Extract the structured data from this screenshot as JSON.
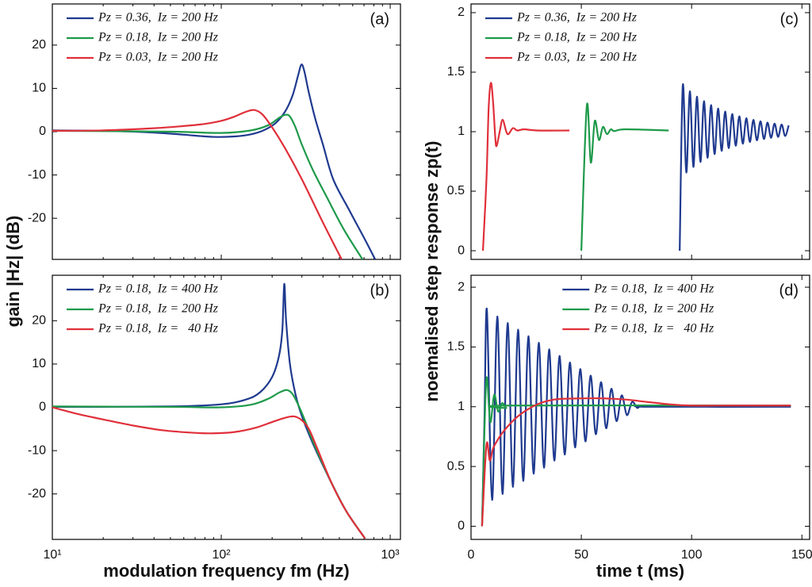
{
  "chart_data": [
    {
      "type": "line",
      "label": "(a)",
      "xscale": "log",
      "xlim": [
        10,
        1150
      ],
      "ylim": [
        -29.5,
        29.5
      ],
      "yticks": [
        20,
        10,
        0,
        -10,
        -20
      ],
      "legend": "upper left",
      "ylabel": "gain |Hz| (dB)",
      "series": [
        {
          "name": "Pz = 0.36,  Iz = 200 Hz",
          "color": "#1f3a8f",
          "x": [
            10,
            20,
            40,
            60,
            90,
            120,
            150,
            180,
            210,
            240,
            265,
            285,
            298,
            310,
            330,
            360,
            400,
            460,
            570,
            700,
            815
          ],
          "values": [
            0.3,
            0.2,
            -0.2,
            -0.7,
            -1.2,
            -1.1,
            -0.6,
            0.4,
            2.0,
            4.8,
            8.5,
            13,
            15.5,
            14,
            9,
            3,
            -3,
            -11,
            -18,
            -24.5,
            -29.5
          ]
        },
        {
          "name": "Pz = 0.18,  Iz = 200 Hz",
          "color": "#1e9a4a",
          "x": [
            10,
            50,
            100,
            150,
            190,
            220,
            240,
            255,
            275,
            300,
            350,
            420,
            530,
            686
          ],
          "values": [
            0.2,
            0.0,
            -0.3,
            0.3,
            1.5,
            3.2,
            3.9,
            3.5,
            1.0,
            -3,
            -9,
            -15,
            -22.5,
            -29.5
          ]
        },
        {
          "name": "Pz = 0.03,  Iz = 200 Hz",
          "color": "#e0303a",
          "x": [
            10,
            20,
            40,
            60,
            80,
            100,
            120,
            140,
            157,
            175,
            200,
            240,
            300,
            400,
            516
          ],
          "values": [
            0.2,
            0.3,
            0.8,
            1.3,
            1.8,
            2.5,
            3.5,
            4.6,
            5.0,
            4.0,
            1.0,
            -4,
            -11,
            -21,
            -29.5
          ]
        }
      ]
    },
    {
      "type": "line",
      "label": "(b)",
      "xscale": "log",
      "xlim": [
        10,
        1150
      ],
      "ylim": [
        -30.5,
        30.5
      ],
      "yticks": [
        20,
        10,
        0,
        -10,
        -20
      ],
      "legend": "upper left",
      "xticks": [
        {
          "value": 10,
          "label": "10¹"
        },
        {
          "value": 100,
          "label": "10²"
        },
        {
          "value": 1000,
          "label": "10³"
        }
      ],
      "xlabel": "modulation frequency fm (Hz)",
      "series": [
        {
          "name": "Pz = 0.18,  Iz = 400 Hz",
          "color": "#1f3a8f",
          "x": [
            10,
            50,
            100,
            140,
            170,
            200,
            220,
            230,
            236,
            242,
            255,
            275,
            300,
            350,
            450,
            550,
            710
          ],
          "values": [
            0.1,
            0.2,
            0.7,
            1.8,
            3.5,
            7,
            12,
            18,
            28.5,
            20,
            10,
            3,
            -2,
            -8.5,
            -17.5,
            -24,
            -30.3
          ]
        },
        {
          "name": "Pz = 0.18,  Iz = 200 Hz",
          "color": "#1e9a4a",
          "x": [
            10,
            50,
            100,
            150,
            190,
            220,
            245,
            265,
            290,
            320,
            350,
            450,
            550,
            710
          ],
          "values": [
            0.2,
            0.1,
            0.0,
            0.6,
            2,
            3.4,
            4,
            3,
            0,
            -4,
            -8,
            -17.5,
            -24,
            -30.3
          ]
        },
        {
          "name": "Pz = 0.18,  Iz =   40 Hz",
          "color": "#e0303a",
          "x": [
            10,
            14,
            20,
            30,
            45,
            70,
            90,
            120,
            160,
            200,
            240,
            270,
            300,
            330,
            370,
            450,
            550,
            710
          ],
          "values": [
            0,
            -1.5,
            -2.8,
            -4.2,
            -5.3,
            -5.9,
            -6.0,
            -5.7,
            -4.7,
            -3.4,
            -2.4,
            -2.1,
            -3,
            -5,
            -9.5,
            -17.5,
            -24,
            -30.3
          ]
        }
      ]
    },
    {
      "type": "line",
      "label": "(c)",
      "xlim": [
        0,
        153.5
      ],
      "ylim": [
        -0.073,
        2.073
      ],
      "yticks": [
        0,
        0.5,
        1,
        1.5,
        2
      ],
      "legend": "upper left",
      "ylabel": "noemalised step response zp(t)",
      "series": [
        {
          "name": "Pz = 0.36,  Iz = 200 Hz",
          "color": "#1f3a8f",
          "x": [
            94.6,
            96,
            97.6,
            99.2,
            100.8,
            102.4,
            104,
            105.6,
            107.2,
            108.8,
            110.4,
            112,
            113.6,
            115.2,
            116.8,
            118.4,
            120,
            121.6,
            123.2,
            124.8,
            126.4,
            128,
            129.6,
            131.2,
            132.8,
            134.4,
            136,
            137.6,
            139.2,
            140.8,
            142.4,
            144
          ],
          "values": [
            0,
            1.39,
            0.657,
            1.339,
            0.704,
            1.294,
            0.746,
            1.256,
            0.781,
            1.223,
            0.812,
            1.194,
            0.839,
            1.169,
            0.862,
            1.148,
            0.882,
            1.129,
            0.899,
            1.113,
            0.914,
            1.099,
            0.927,
            1.087,
            0.938,
            1.077,
            0.948,
            1.068,
            0.956,
            1.06,
            0.964,
            1.053
          ]
        },
        {
          "name": "Pz = 0.18,  Iz = 200 Hz",
          "color": "#1e9a4a",
          "x": [
            50,
            52.5,
            54.3,
            56.1,
            58,
            59.8,
            61.6,
            63.4,
            65,
            70,
            89.6
          ],
          "values": [
            0,
            1.22,
            0.74,
            1.09,
            0.93,
            1.04,
            0.98,
            1.02,
            1.005,
            1.02,
            1.01
          ]
        },
        {
          "name": "Pz = 0.03,  Iz = 200 Hz",
          "color": "#e0303a",
          "x": [
            5.4,
            7,
            8,
            9,
            10,
            11,
            11.6,
            13,
            14.3,
            16,
            17,
            19,
            21,
            24,
            30,
            44.6
          ],
          "values": [
            0,
            0.6,
            1.2,
            1.41,
            1.25,
            0.95,
            0.88,
            1.0,
            1.1,
            1.0,
            0.98,
            1.03,
            1.01,
            1.02,
            1.01,
            1.01
          ]
        }
      ]
    },
    {
      "type": "line",
      "label": "(d)",
      "xlim": [
        0,
        153.5
      ],
      "ylim": [
        -0.11,
        2.1
      ],
      "yticks": [
        0,
        0.5,
        1,
        1.5,
        2
      ],
      "xticks": [
        0,
        50,
        100,
        150
      ],
      "legend": "upper center",
      "xlabel": "time t (ms)",
      "series": [
        {
          "name": "Pz = 0.18,  Iz = 400 Hz",
          "color": "#1f3a8f",
          "x": [
            5,
            6.1,
            7.2,
            9.55,
            11.9,
            14.25,
            16.6,
            18.95,
            21.3,
            23.65,
            26.0,
            28.35,
            30.7,
            33.05,
            35.4,
            37.75,
            40.1,
            42.45,
            44.8,
            47.15,
            49.5,
            51.85,
            54.2,
            56.55,
            58.9,
            61.25,
            63.6,
            65.95,
            68.3,
            70.65,
            73.0,
            75.35,
            77,
            80,
            145
          ],
          "values": [
            0,
            0.9,
            1.81,
            0.22,
            1.755,
            0.27,
            1.7,
            0.33,
            1.645,
            0.38,
            1.59,
            0.44,
            1.535,
            0.49,
            1.48,
            0.55,
            1.425,
            0.6,
            1.37,
            0.66,
            1.315,
            0.71,
            1.26,
            0.77,
            1.205,
            0.82,
            1.15,
            0.88,
            1.095,
            0.93,
            1.04,
            0.99,
            1.01,
            1.0,
            1.0
          ]
        },
        {
          "name": "Pz = 0.18,  Iz = 200 Hz",
          "color": "#1e9a4a",
          "x": [
            5,
            6.9,
            8.7,
            10.5,
            12.3,
            14.1,
            16,
            18,
            145
          ],
          "values": [
            0,
            1.22,
            0.87,
            1.1,
            0.96,
            1.03,
            0.99,
            1.01,
            1.01
          ]
        },
        {
          "name": "Pz = 0.18,  Iz =   40 Hz",
          "color": "#e0303a",
          "x": [
            5,
            7,
            8.5,
            10,
            12,
            15,
            20,
            25,
            30,
            35,
            40,
            50,
            60,
            70,
            80,
            90,
            100,
            120,
            145
          ],
          "values": [
            0,
            0.68,
            0.55,
            0.65,
            0.72,
            0.8,
            0.9,
            0.97,
            1.02,
            1.05,
            1.065,
            1.07,
            1.07,
            1.06,
            1.04,
            1.02,
            1.01,
            1.01,
            1.01
          ]
        }
      ]
    }
  ]
}
